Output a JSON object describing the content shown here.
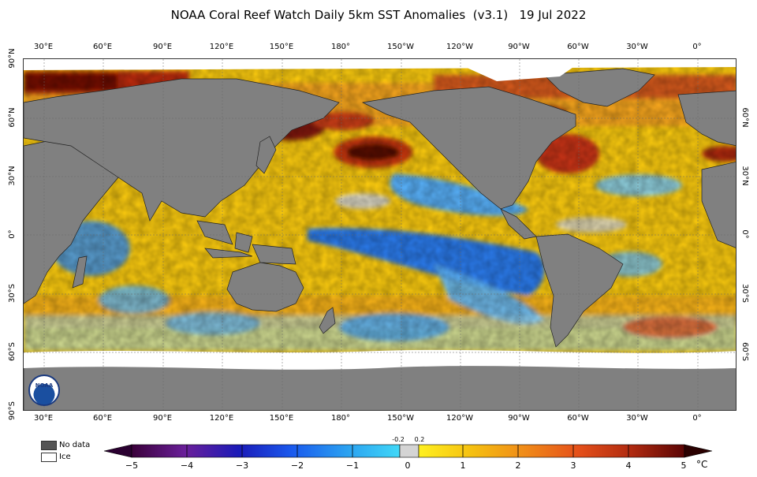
{
  "title": "NOAA Coral Reef Watch Daily 5km SST Anomalies  (v3.1)   19 Jul 2022",
  "lon_labels": [
    "30°E",
    "60°E",
    "90°E",
    "120°E",
    "150°E",
    "180°",
    "150°W",
    "120°W",
    "90°W",
    "60°W",
    "30°W",
    "0°"
  ],
  "lat_labels_left": [
    "90°N",
    "60°N",
    "30°N",
    "0°",
    "30°S",
    "60°S",
    "90°S"
  ],
  "lat_labels_right": [
    "60°N",
    "30°N",
    "0°",
    "30°S",
    "60°S"
  ],
  "legend": {
    "no_data": "No data",
    "ice": "Ice"
  },
  "colorbar": {
    "ticks": [
      "−5",
      "−4",
      "−3",
      "−2",
      "−1",
      "0",
      "1",
      "2",
      "3",
      "4",
      "5"
    ],
    "near_zero": [
      "-0.2",
      "0.2"
    ],
    "unit": "°C"
  },
  "colors": {
    "land": "#808080",
    "no_data": "#555555",
    "ice": "#ffffff",
    "neutral": "#d0d0d0"
  },
  "logo_text": "NOAA"
}
